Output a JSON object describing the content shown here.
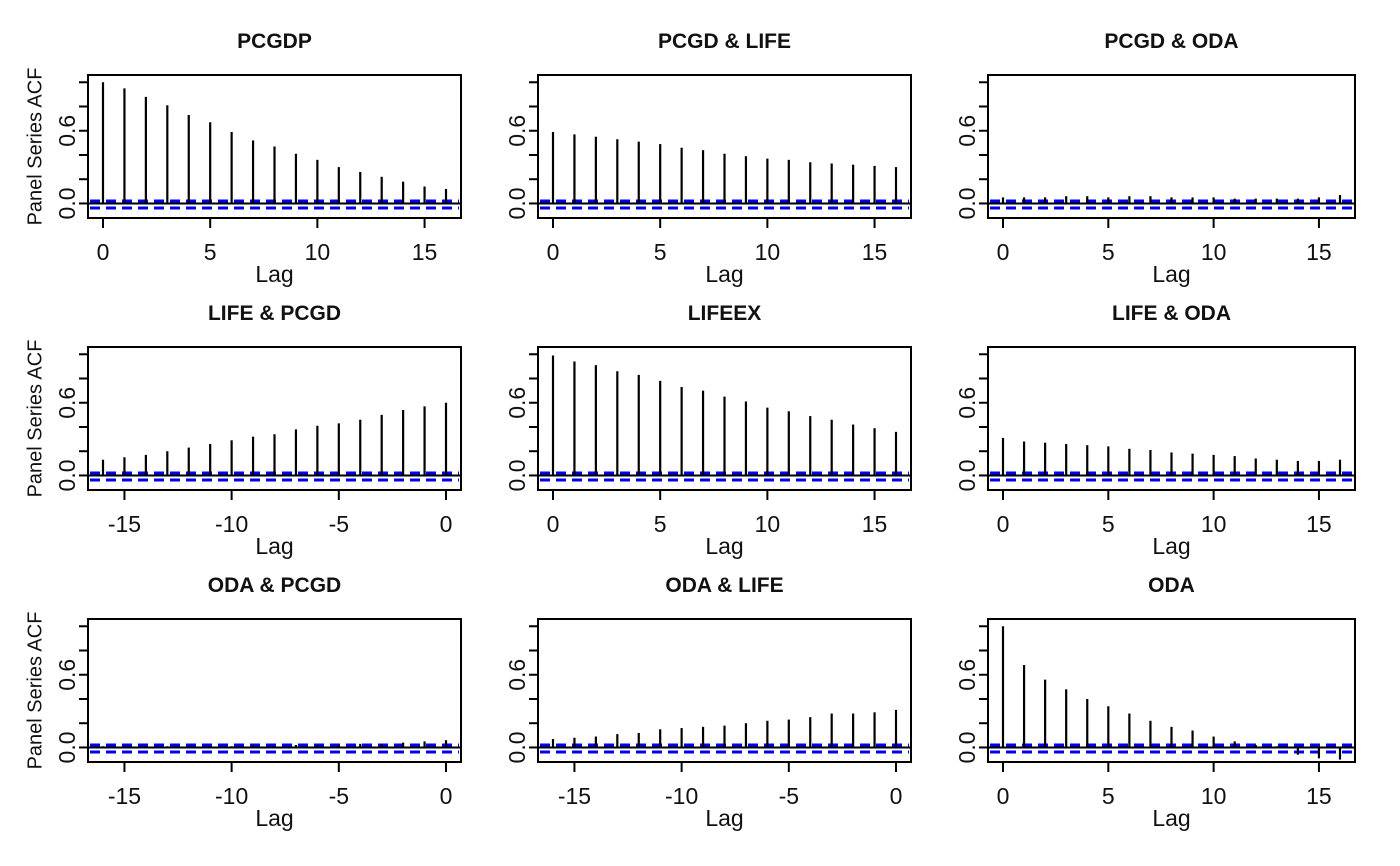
{
  "figure": {
    "background": "#ffffff",
    "text_color": "#111111"
  },
  "chart_data": {
    "type": "bar",
    "description_visible_text_only": "3x3 matrix of panel-series autocorrelation / cross-correlation plots",
    "xlabel": "Lag",
    "ylabel": "Panel Series ACF",
    "ylim": [
      -0.12,
      1.06
    ],
    "yticks": [
      0,
      0.2,
      0.4,
      0.6,
      0.8,
      1.0
    ],
    "ytick_labels": [
      "0.0",
      "0.6"
    ],
    "ytick_label_values": [
      0,
      0.6
    ],
    "grid": false,
    "bar_color": "#000000",
    "confidence_band": {
      "upper": 0.02,
      "lower": -0.02,
      "style": "dashed",
      "color": "#0000EE"
    },
    "panels": [
      {
        "title": "PCGDP",
        "lags": [
          0,
          1,
          2,
          3,
          4,
          5,
          6,
          7,
          8,
          9,
          10,
          11,
          12,
          13,
          14,
          15,
          16
        ],
        "values": [
          1.0,
          0.95,
          0.88,
          0.81,
          0.73,
          0.67,
          0.59,
          0.52,
          0.47,
          0.41,
          0.36,
          0.3,
          0.26,
          0.22,
          0.18,
          0.14,
          0.12
        ],
        "xticks": [
          0,
          5,
          10,
          15
        ],
        "show_ylabel": true
      },
      {
        "title": "PCGD & LIFE",
        "lags": [
          0,
          1,
          2,
          3,
          4,
          5,
          6,
          7,
          8,
          9,
          10,
          11,
          12,
          13,
          14,
          15,
          16
        ],
        "values": [
          0.59,
          0.57,
          0.55,
          0.53,
          0.51,
          0.49,
          0.46,
          0.44,
          0.41,
          0.39,
          0.37,
          0.36,
          0.34,
          0.33,
          0.32,
          0.31,
          0.3
        ],
        "xticks": [
          0,
          5,
          10,
          15
        ],
        "show_ylabel": false
      },
      {
        "title": "PCGD & ODA",
        "lags": [
          0,
          1,
          2,
          3,
          4,
          5,
          6,
          7,
          8,
          9,
          10,
          11,
          12,
          13,
          14,
          15,
          16
        ],
        "values": [
          0.05,
          0.05,
          0.05,
          0.06,
          0.06,
          0.05,
          0.06,
          0.06,
          0.05,
          0.05,
          0.05,
          0.04,
          0.04,
          0.04,
          0.04,
          0.05,
          0.07
        ],
        "xticks": [
          0,
          5,
          10,
          15
        ],
        "show_ylabel": false
      },
      {
        "title": "LIFE & PCGD",
        "lags": [
          -16,
          -15,
          -14,
          -13,
          -12,
          -11,
          -10,
          -9,
          -8,
          -7,
          -6,
          -5,
          -4,
          -3,
          -2,
          -1,
          0
        ],
        "values": [
          0.13,
          0.15,
          0.17,
          0.2,
          0.23,
          0.26,
          0.29,
          0.32,
          0.34,
          0.38,
          0.41,
          0.43,
          0.46,
          0.5,
          0.54,
          0.57,
          0.6
        ],
        "xticks": [
          -15,
          -10,
          -5,
          0
        ],
        "show_ylabel": true
      },
      {
        "title": "LIFEEX",
        "lags": [
          0,
          1,
          2,
          3,
          4,
          5,
          6,
          7,
          8,
          9,
          10,
          11,
          12,
          13,
          14,
          15,
          16
        ],
        "values": [
          0.99,
          0.94,
          0.91,
          0.86,
          0.83,
          0.78,
          0.73,
          0.7,
          0.65,
          0.61,
          0.56,
          0.53,
          0.49,
          0.46,
          0.42,
          0.39,
          0.36
        ],
        "xticks": [
          0,
          5,
          10,
          15
        ],
        "show_ylabel": false
      },
      {
        "title": "LIFE & ODA",
        "lags": [
          0,
          1,
          2,
          3,
          4,
          5,
          6,
          7,
          8,
          9,
          10,
          11,
          12,
          13,
          14,
          15,
          16
        ],
        "values": [
          0.31,
          0.28,
          0.27,
          0.26,
          0.25,
          0.24,
          0.22,
          0.21,
          0.19,
          0.18,
          0.17,
          0.16,
          0.14,
          0.13,
          0.12,
          0.12,
          0.13
        ],
        "xticks": [
          0,
          5,
          10,
          15
        ],
        "show_ylabel": false
      },
      {
        "title": "ODA & PCGD",
        "lags": [
          -16,
          -15,
          -14,
          -13,
          -12,
          -11,
          -10,
          -9,
          -8,
          -7,
          -6,
          -5,
          -4,
          -3,
          -2,
          -1,
          0
        ],
        "values": [
          0.01,
          0.01,
          0.01,
          0.01,
          0.01,
          0.01,
          0.01,
          0.02,
          0.01,
          0.02,
          0.02,
          0.02,
          0.03,
          0.03,
          0.04,
          0.05,
          0.06
        ],
        "xticks": [
          -15,
          -10,
          -5,
          0
        ],
        "show_ylabel": true
      },
      {
        "title": "ODA & LIFE",
        "lags": [
          -16,
          -15,
          -14,
          -13,
          -12,
          -11,
          -10,
          -9,
          -8,
          -7,
          -6,
          -5,
          -4,
          -3,
          -2,
          -1,
          0
        ],
        "values": [
          0.07,
          0.08,
          0.09,
          0.11,
          0.12,
          0.15,
          0.16,
          0.17,
          0.18,
          0.2,
          0.22,
          0.23,
          0.25,
          0.28,
          0.28,
          0.29,
          0.31
        ],
        "xticks": [
          -15,
          -10,
          -5,
          0
        ],
        "show_ylabel": false
      },
      {
        "title": "ODA",
        "lags": [
          0,
          1,
          2,
          3,
          4,
          5,
          6,
          7,
          8,
          9,
          10,
          11,
          12,
          13,
          14,
          15,
          16
        ],
        "values": [
          1.0,
          0.68,
          0.56,
          0.48,
          0.4,
          0.34,
          0.28,
          0.22,
          0.17,
          0.14,
          0.09,
          0.05,
          0.02,
          0.01,
          -0.06,
          -0.09,
          -0.1
        ],
        "xticks": [
          0,
          5,
          10,
          15
        ],
        "show_ylabel": false
      }
    ]
  }
}
